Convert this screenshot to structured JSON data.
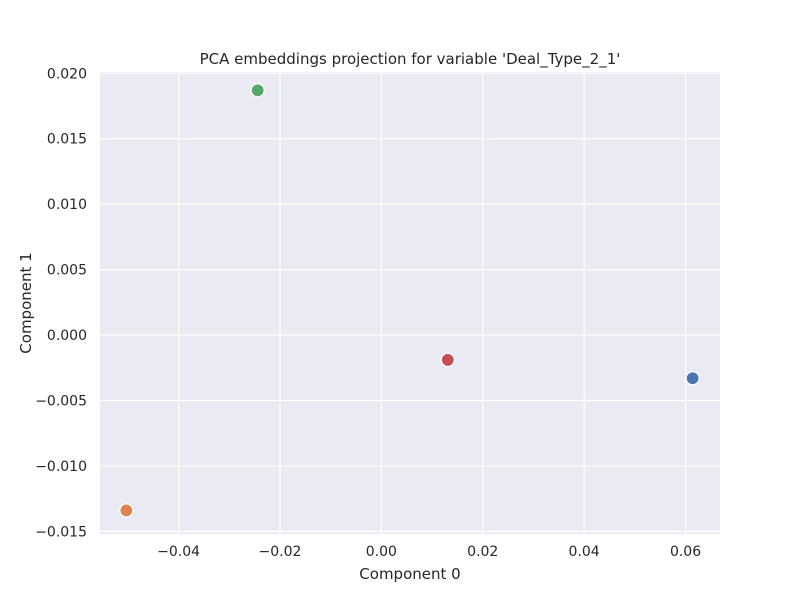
{
  "chart_data": {
    "type": "scatter",
    "title": "PCA embeddings projection for variable 'Deal_Type_2_1'",
    "xlabel": "Component 0",
    "ylabel": "Component 1",
    "xlim": [
      -0.0555,
      0.0668
    ],
    "ylim": [
      -0.0152,
      0.0201
    ],
    "grid": true,
    "background": "#EAEAF2",
    "grid_color": "#FFFFFF",
    "x_ticks": [
      -0.04,
      -0.02,
      0.0,
      0.02,
      0.04,
      0.06
    ],
    "x_tick_labels": [
      "−0.04",
      "−0.02",
      "0.00",
      "0.02",
      "0.04",
      "0.06"
    ],
    "y_ticks": [
      -0.015,
      -0.01,
      -0.005,
      0.0,
      0.005,
      0.01,
      0.015,
      0.02
    ],
    "y_tick_labels": [
      "−0.015",
      "−0.010",
      "−0.005",
      "0.000",
      "0.005",
      "0.010",
      "0.015",
      "0.020"
    ],
    "points": [
      {
        "x": 0.0614,
        "y": -0.0033,
        "color": "#4C72B0"
      },
      {
        "x": -0.0503,
        "y": -0.0134,
        "color": "#DD8452"
      },
      {
        "x": -0.0244,
        "y": 0.0187,
        "color": "#55A868"
      },
      {
        "x": 0.0131,
        "y": -0.0019,
        "color": "#C44E52"
      }
    ]
  }
}
